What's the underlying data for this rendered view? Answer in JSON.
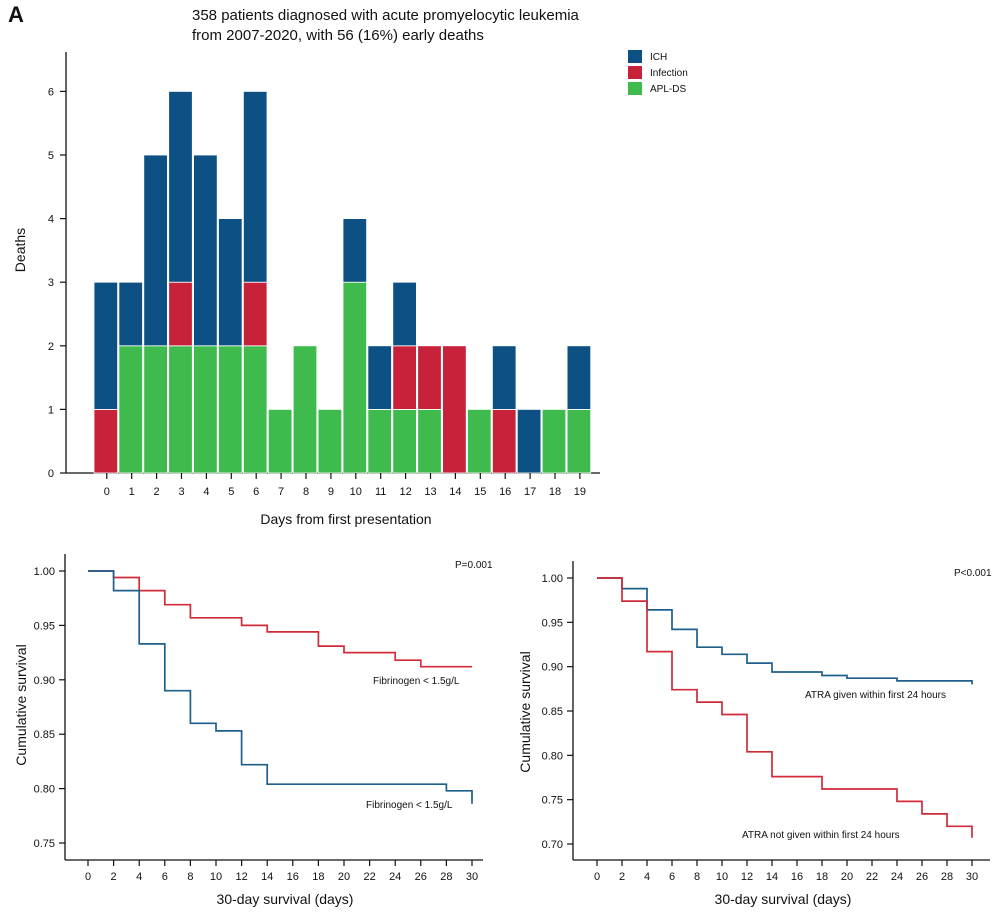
{
  "panel_letter": "A",
  "title_lines": [
    "358 patients diagnosed with acute promyelocytic leukemia",
    "from 2007-2020, with 56 (16%) early deaths"
  ],
  "colors": {
    "ICH": "#0d5184",
    "Infection": "#c8223a",
    "APL-DS": "#3fbb4e",
    "blue_line": "#1f5f8b",
    "red_line": "#d02b3a"
  },
  "chart_data": [
    {
      "type": "bar",
      "stacked": true,
      "title": "358 patients diagnosed with acute promyelocytic leukemia from 2007-2020, with 56 (16%) early deaths",
      "xlabel": "Days from first presentation",
      "ylabel": "Deaths",
      "ylim": [
        0,
        6.5
      ],
      "yticks": [
        0,
        1,
        2,
        3,
        4,
        5,
        6
      ],
      "categories": [
        "0",
        "1",
        "2",
        "3",
        "4",
        "5",
        "6",
        "7",
        "8",
        "9",
        "10",
        "11",
        "12",
        "13",
        "14",
        "15",
        "16",
        "17",
        "18",
        "19"
      ],
      "series": [
        {
          "name": "APL-DS",
          "values": [
            0,
            2,
            2,
            2,
            2,
            2,
            2,
            1,
            2,
            1,
            3,
            1,
            1,
            1,
            0,
            1,
            0,
            0,
            1,
            1
          ]
        },
        {
          "name": "Infection",
          "values": [
            1,
            0,
            0,
            1,
            0,
            0,
            1,
            0,
            0,
            0,
            0,
            0,
            1,
            1,
            2,
            0,
            1,
            0,
            0,
            0
          ]
        },
        {
          "name": "ICH",
          "values": [
            2,
            1,
            3,
            3,
            3,
            2,
            3,
            0,
            0,
            0,
            1,
            1,
            1,
            0,
            0,
            0,
            1,
            1,
            0,
            1
          ]
        }
      ],
      "legend": [
        "ICH",
        "Infection",
        "APL-DS"
      ],
      "legend_position": "top-right"
    },
    {
      "type": "line",
      "step": true,
      "xlabel": "30-day survival (days)",
      "ylabel": "Cumulative survival",
      "xlim": [
        0,
        30
      ],
      "ylim": [
        0.74,
        1.02
      ],
      "xticks": [
        0,
        2,
        4,
        6,
        8,
        10,
        12,
        14,
        16,
        18,
        20,
        22,
        24,
        26,
        28,
        30
      ],
      "yticks": [
        "0.75",
        "0.80",
        "0.85",
        "0.90",
        "0.95",
        "1.00"
      ],
      "p_value": "P=0.001",
      "series": [
        {
          "name": "Fibrinogen < 1.5g/L",
          "label_text": "Fibrinogen < 1.5g/L",
          "color": "red",
          "x": [
            0,
            2,
            4,
            6,
            8,
            12,
            14,
            18,
            20,
            24,
            26,
            30
          ],
          "y": [
            1.0,
            0.994,
            0.982,
            0.969,
            0.957,
            0.95,
            0.944,
            0.931,
            0.925,
            0.918,
            0.912,
            0.912
          ]
        },
        {
          "name": "Fibrinogen < 1.5g/L (low)",
          "label_text": "Fibrinogen < 1.5g/L",
          "color": "blue",
          "x": [
            0,
            2,
            4,
            6,
            8,
            10,
            12,
            14,
            28,
            30,
            30
          ],
          "y": [
            1.0,
            0.982,
            0.933,
            0.89,
            0.86,
            0.853,
            0.822,
            0.804,
            0.798,
            0.798,
            0.786
          ]
        }
      ]
    },
    {
      "type": "line",
      "step": true,
      "xlabel": "30-day survival (days)",
      "ylabel": "Cumulative survival",
      "xlim": [
        0,
        30
      ],
      "ylim": [
        0.69,
        1.02
      ],
      "xticks": [
        0,
        2,
        4,
        6,
        8,
        10,
        12,
        14,
        16,
        18,
        20,
        22,
        24,
        26,
        28,
        30
      ],
      "yticks": [
        "0.70",
        "0.75",
        "0.80",
        "0.85",
        "0.90",
        "0.95",
        "1.00"
      ],
      "p_value": "P<0.001",
      "series": [
        {
          "name": "ATRA given within first 24 hours",
          "label_text": "ATRA given within first 24 hours",
          "color": "blue",
          "x": [
            0,
            2,
            4,
            6,
            8,
            10,
            12,
            14,
            18,
            20,
            24,
            30,
            30
          ],
          "y": [
            1.0,
            0.988,
            0.964,
            0.942,
            0.922,
            0.914,
            0.904,
            0.894,
            0.89,
            0.887,
            0.884,
            0.884,
            0.88
          ]
        },
        {
          "name": "ATRA not given within first 24 hours",
          "label_text": "ATRA not given within first 24 hours",
          "color": "red",
          "x": [
            0,
            2,
            4,
            6,
            8,
            10,
            12,
            14,
            18,
            24,
            26,
            28,
            30,
            30
          ],
          "y": [
            1.0,
            0.974,
            0.917,
            0.874,
            0.86,
            0.846,
            0.804,
            0.776,
            0.762,
            0.748,
            0.734,
            0.72,
            0.72,
            0.707
          ]
        }
      ]
    }
  ]
}
